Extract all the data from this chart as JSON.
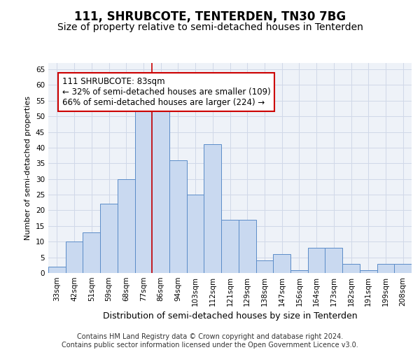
{
  "title": "111, SHRUBCOTE, TENTERDEN, TN30 7BG",
  "subtitle": "Size of property relative to semi-detached houses in Tenterden",
  "xlabel": "Distribution of semi-detached houses by size in Tenterden",
  "ylabel": "Number of semi-detached properties",
  "categories": [
    "33sqm",
    "42sqm",
    "51sqm",
    "59sqm",
    "68sqm",
    "77sqm",
    "86sqm",
    "94sqm",
    "103sqm",
    "112sqm",
    "121sqm",
    "129sqm",
    "138sqm",
    "147sqm",
    "156sqm",
    "164sqm",
    "173sqm",
    "182sqm",
    "191sqm",
    "199sqm",
    "208sqm"
  ],
  "values": [
    2,
    10,
    13,
    22,
    30,
    52,
    53,
    36,
    25,
    41,
    17,
    17,
    4,
    6,
    1,
    8,
    8,
    3,
    1,
    3,
    3
  ],
  "bar_color": "#c9d9f0",
  "bar_edge_color": "#5b8cc8",
  "highlight_index": 6,
  "annotation_text": "111 SHRUBCOTE: 83sqm\n← 32% of semi-detached houses are smaller (109)\n66% of semi-detached houses are larger (224) →",
  "annotation_box_color": "#ffffff",
  "annotation_box_edge_color": "#cc0000",
  "ylim": [
    0,
    67
  ],
  "yticks": [
    0,
    5,
    10,
    15,
    20,
    25,
    30,
    35,
    40,
    45,
    50,
    55,
    60,
    65
  ],
  "grid_color": "#d0d8e8",
  "background_color": "#eef2f8",
  "footer": "Contains HM Land Registry data © Crown copyright and database right 2024.\nContains public sector information licensed under the Open Government Licence v3.0.",
  "title_fontsize": 12,
  "subtitle_fontsize": 10,
  "xlabel_fontsize": 9,
  "ylabel_fontsize": 8,
  "tick_fontsize": 7.5,
  "annotation_fontsize": 8.5,
  "footer_fontsize": 7
}
